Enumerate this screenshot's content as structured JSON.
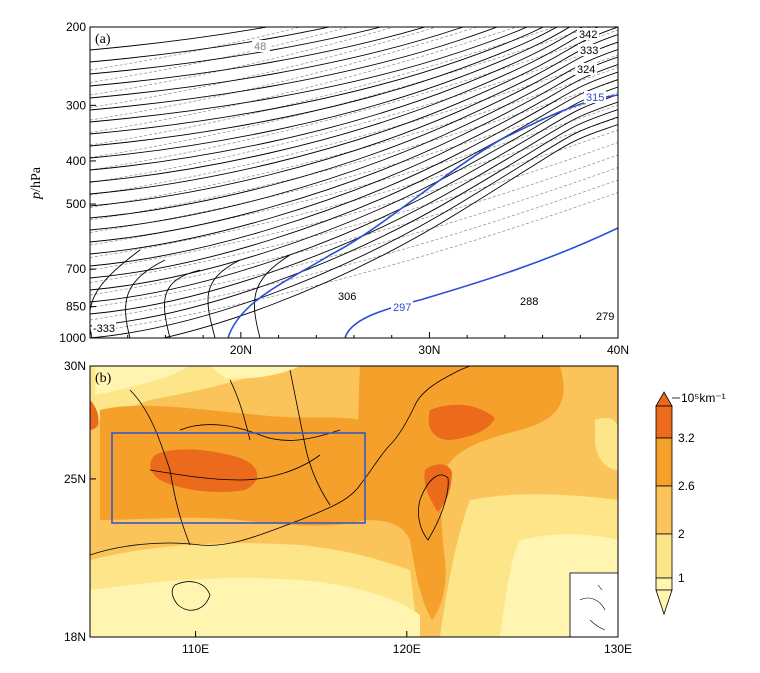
{
  "chart_data": [
    {
      "panel": "(a)",
      "type": "contour",
      "ylabel_italic": "p",
      "ylabel_rest": "/hPa",
      "y_ticks": [
        "200",
        "300",
        "400",
        "500",
        "700",
        "850",
        "1000"
      ],
      "x_ticks": [
        "20N",
        "30N",
        "40N"
      ],
      "xlim": [
        12,
        40
      ],
      "ylim": [
        1000,
        200
      ],
      "contour_labels": [
        {
          "value": "342",
          "color": "#000000"
        },
        {
          "value": "333",
          "color": "#000000"
        },
        {
          "value": "324",
          "color": "#000000"
        },
        {
          "value": "315",
          "color": "#2b4fd6"
        },
        {
          "value": "306",
          "color": "#000000"
        },
        {
          "value": "297",
          "color": "#2b4fd6"
        },
        {
          "value": "288",
          "color": "#000000"
        },
        {
          "value": "279",
          "color": "#000000"
        },
        {
          "value": "-333",
          "color": "#000000"
        },
        {
          "value": "48",
          "color": "#808080"
        }
      ]
    },
    {
      "panel": "(b)",
      "type": "heatmap",
      "y_ticks": [
        "30N",
        "25N",
        "18N"
      ],
      "x_ticks": [
        "110E",
        "120E",
        "130E"
      ],
      "xlim": [
        105,
        130
      ],
      "ylim": [
        18,
        30
      ],
      "colorbar_unit": "10⁵km⁻¹",
      "colorbar_levels": [
        "1",
        "2",
        "2.6",
        "3.2"
      ],
      "colorbar_colors": [
        "#fff4b0",
        "#fde58a",
        "#fbc45a",
        "#f5a02a",
        "#ec6a1c"
      ]
    }
  ]
}
